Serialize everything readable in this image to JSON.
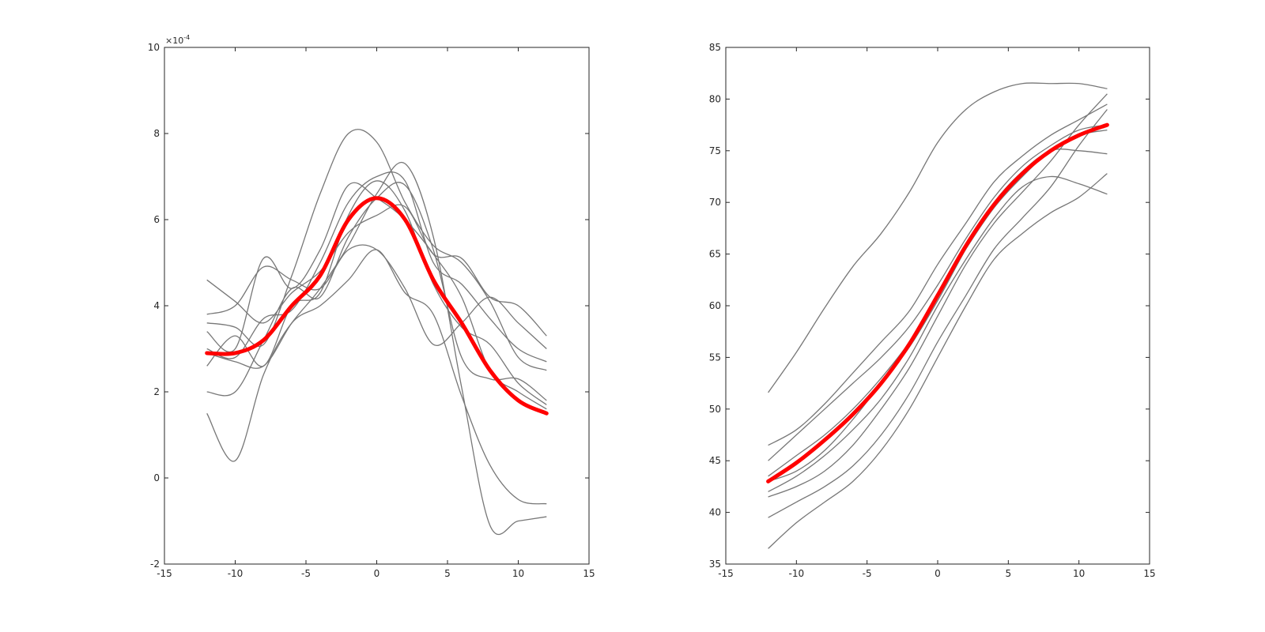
{
  "chart_data": [
    {
      "type": "line",
      "title": "",
      "xlabel": "",
      "ylabel": "",
      "xlim": [
        -15,
        15
      ],
      "ylim": [
        -2,
        10
      ],
      "xticks": [
        -15,
        -10,
        -5,
        0,
        5,
        10,
        15
      ],
      "yticks": [
        -2,
        0,
        2,
        4,
        6,
        8,
        10
      ],
      "xtick_labels": [
        "-15",
        "-10",
        "-5",
        "0",
        "5",
        "10",
        "15"
      ],
      "ytick_labels": [
        "-2",
        "0",
        "2",
        "4",
        "6",
        "8",
        "10"
      ],
      "exponent_label": {
        "base": "×10",
        "exp": "-4"
      },
      "grid": false,
      "x": [
        -12,
        -10,
        -8,
        -6,
        -4,
        -2,
        0,
        2,
        4,
        6,
        8,
        10,
        12
      ],
      "series": [
        {
          "values": [
            4.6,
            4.1,
            3.6,
            4.3,
            4.8,
            5.7,
            6.1,
            6.3,
            5.2,
            5.1,
            4.2,
            4.0,
            3.3
          ]
        },
        {
          "values": [
            3.8,
            4.0,
            4.9,
            4.6,
            4.4,
            5.3,
            5.3,
            4.4,
            3.1,
            3.6,
            4.2,
            3.6,
            3.0
          ]
        },
        {
          "values": [
            3.6,
            3.5,
            3.1,
            4.7,
            6.6,
            8.0,
            7.8,
            6.4,
            5.4,
            5.0,
            4.1,
            2.8,
            2.5
          ]
        },
        {
          "values": [
            3.4,
            3.0,
            5.1,
            4.4,
            5.3,
            6.8,
            6.5,
            6.0,
            5.2,
            4.2,
            2.5,
            2.0,
            1.6
          ]
        },
        {
          "values": [
            3.0,
            2.8,
            3.7,
            3.9,
            5.0,
            6.4,
            7.0,
            6.9,
            5.0,
            4.5,
            3.7,
            3.0,
            2.7
          ]
        },
        {
          "values": [
            2.6,
            3.3,
            2.6,
            4.0,
            4.3,
            6.1,
            6.9,
            6.2,
            4.5,
            3.5,
            3.1,
            2.2,
            1.7
          ]
        },
        {
          "values": [
            2.0,
            2.0,
            3.2,
            4.4,
            4.2,
            5.6,
            6.5,
            6.8,
            5.3,
            2.8,
            2.3,
            2.3,
            1.8
          ]
        },
        {
          "values": [
            1.5,
            0.4,
            2.4,
            3.6,
            4.0,
            4.6,
            5.3,
            4.3,
            3.8,
            1.9,
            0.3,
            -0.5,
            -0.6
          ]
        },
        {
          "values": [
            2.9,
            2.7,
            2.6,
            3.6,
            4.4,
            5.4,
            6.6,
            7.3,
            5.6,
            2.1,
            -1.1,
            -1.0,
            -0.9
          ]
        }
      ],
      "mean": {
        "values": [
          2.9,
          2.9,
          3.2,
          4.0,
          4.7,
          6.0,
          6.5,
          6.0,
          4.6,
          3.6,
          2.5,
          1.8,
          1.5
        ]
      },
      "colors": {
        "traces": "#777777",
        "mean": "#ff0000",
        "axes": "#262626"
      }
    },
    {
      "type": "line",
      "title": "",
      "xlabel": "",
      "ylabel": "",
      "xlim": [
        -15,
        15
      ],
      "ylim": [
        35,
        85
      ],
      "xticks": [
        -15,
        -10,
        -5,
        0,
        5,
        10,
        15
      ],
      "yticks": [
        35,
        40,
        45,
        50,
        55,
        60,
        65,
        70,
        75,
        80,
        85
      ],
      "xtick_labels": [
        "-15",
        "-10",
        "-5",
        "0",
        "5",
        "10",
        "15"
      ],
      "ytick_labels": [
        "35",
        "40",
        "45",
        "50",
        "55",
        "60",
        "65",
        "70",
        "75",
        "80",
        "85"
      ],
      "grid": false,
      "x": [
        -12,
        -10,
        -8,
        -6,
        -4,
        -2,
        0,
        2,
        4,
        6,
        8,
        10,
        12
      ],
      "series": [
        {
          "values": [
            51.6,
            55.5,
            59.8,
            63.8,
            67.0,
            71.0,
            75.8,
            79.0,
            80.7,
            81.5,
            81.5,
            81.5,
            81.0
          ]
        },
        {
          "values": [
            46.5,
            48.0,
            50.5,
            53.5,
            56.5,
            59.5,
            64.0,
            68.0,
            72.0,
            74.5,
            76.5,
            78.0,
            79.5
          ]
        },
        {
          "values": [
            45.0,
            47.5,
            50.0,
            52.5,
            55.0,
            58.0,
            62.0,
            66.5,
            70.5,
            73.5,
            75.5,
            77.0,
            77.5
          ]
        },
        {
          "values": [
            43.5,
            45.5,
            47.5,
            50.0,
            53.0,
            56.5,
            61.0,
            65.5,
            69.5,
            72.5,
            75.0,
            76.5,
            77.0
          ]
        },
        {
          "values": [
            43.0,
            44.0,
            46.0,
            49.0,
            52.5,
            56.0,
            60.5,
            65.5,
            70.0,
            73.0,
            75.0,
            75.0,
            74.7
          ]
        },
        {
          "values": [
            42.0,
            43.5,
            45.5,
            48.0,
            51.0,
            55.0,
            60.0,
            64.5,
            68.5,
            71.5,
            72.5,
            71.8,
            70.8
          ]
        },
        {
          "values": [
            41.5,
            42.5,
            44.0,
            46.5,
            50.0,
            54.0,
            59.0,
            64.0,
            68.0,
            71.0,
            74.0,
            77.5,
            80.5
          ]
        },
        {
          "values": [
            39.5,
            41.0,
            42.5,
            44.5,
            47.5,
            51.5,
            56.5,
            61.0,
            65.5,
            68.5,
            71.5,
            75.5,
            79.0
          ]
        },
        {
          "values": [
            36.5,
            39.0,
            41.0,
            43.0,
            46.0,
            50.0,
            55.0,
            60.0,
            64.5,
            67.0,
            69.0,
            70.5,
            72.8
          ]
        }
      ],
      "mean": {
        "values": [
          43.0,
          44.8,
          47.0,
          49.5,
          52.5,
          56.3,
          61.0,
          65.8,
          69.8,
          72.8,
          75.0,
          76.5,
          77.5
        ]
      },
      "colors": {
        "traces": "#777777",
        "mean": "#ff0000",
        "axes": "#262626"
      }
    }
  ]
}
